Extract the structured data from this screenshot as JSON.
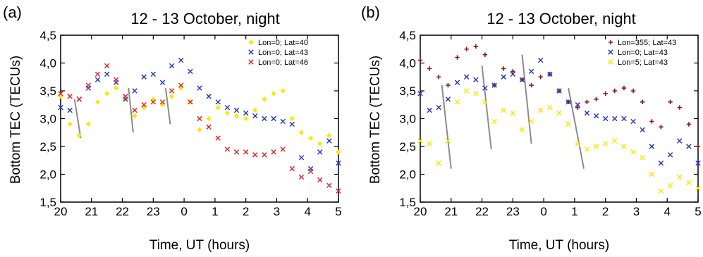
{
  "figure": {
    "panels": [
      {
        "letter": "(a)",
        "title": "12 - 13 October, night"
      },
      {
        "letter": "(b)",
        "title": "12 - 13 October, night"
      }
    ]
  },
  "chart_data": [
    {
      "type": "scatter",
      "panel": "(a)",
      "title": "12 - 13 October, night",
      "xlabel": "Time, UT (hours)",
      "ylabel": "Bottom TEC (TECUs)",
      "x_tick_labels": [
        "20",
        "21",
        "22",
        "23",
        "0",
        "1",
        "2",
        "3",
        "4",
        "5"
      ],
      "y_tick_labels": [
        "1,5",
        "2,0",
        "2,5",
        "3,0",
        "3,5",
        "4,0",
        "4,5"
      ],
      "xlim": [
        20,
        29
      ],
      "ylim": [
        1.5,
        4.5
      ],
      "legend_position": "top-right",
      "series": [
        {
          "name": "Lon=0; Lat=40",
          "color": "#ffe600",
          "marker": "diamond",
          "x": [
            20.0,
            20.3,
            20.6,
            20.9,
            21.2,
            21.5,
            21.8,
            22.1,
            22.4,
            22.7,
            23.0,
            23.3,
            23.6,
            23.9,
            24.2,
            24.5,
            24.8,
            25.1,
            25.4,
            25.7,
            26.0,
            26.3,
            26.6,
            26.9,
            27.2,
            27.5,
            27.8,
            28.1,
            28.4,
            28.7,
            29.0
          ],
          "y": [
            3.4,
            2.9,
            2.7,
            2.9,
            3.3,
            3.45,
            3.55,
            3.35,
            3.05,
            3.2,
            3.35,
            3.25,
            3.4,
            3.55,
            3.3,
            2.8,
            3.0,
            3.2,
            3.1,
            3.05,
            3.0,
            3.15,
            3.35,
            3.45,
            3.5,
            3.0,
            2.75,
            2.65,
            2.55,
            2.7,
            2.4
          ]
        },
        {
          "name": "Lon=0; Lat=43",
          "color": "#2b3bc2",
          "marker": "x",
          "x": [
            20.0,
            20.3,
            20.6,
            20.9,
            21.2,
            21.5,
            21.8,
            22.1,
            22.4,
            22.7,
            23.0,
            23.3,
            23.6,
            23.9,
            24.2,
            24.5,
            24.8,
            25.1,
            25.4,
            25.7,
            26.0,
            26.3,
            26.6,
            26.9,
            27.2,
            27.5,
            27.8,
            28.1,
            28.4,
            28.7,
            29.0
          ],
          "y": [
            3.2,
            3.15,
            3.35,
            3.55,
            3.7,
            3.8,
            3.65,
            3.35,
            3.5,
            3.75,
            3.8,
            3.65,
            3.95,
            4.05,
            3.85,
            3.55,
            3.4,
            3.3,
            3.2,
            3.15,
            3.1,
            3.05,
            3.0,
            3.0,
            2.95,
            2.9,
            2.3,
            2.1,
            2.4,
            2.6,
            2.2
          ]
        },
        {
          "name": "Lon=0; Lat=46",
          "color": "#dd2a2a",
          "marker": "x",
          "x": [
            20.0,
            20.3,
            20.6,
            20.9,
            21.2,
            21.5,
            21.8,
            22.1,
            22.4,
            22.7,
            23.0,
            23.3,
            23.6,
            23.9,
            24.2,
            24.5,
            24.8,
            25.1,
            25.4,
            25.7,
            26.0,
            26.3,
            26.6,
            26.9,
            27.2,
            27.5,
            27.8,
            28.1,
            28.4,
            28.7,
            29.0
          ],
          "y": [
            3.45,
            3.4,
            3.35,
            3.6,
            3.8,
            3.95,
            3.7,
            3.4,
            3.15,
            3.25,
            3.3,
            3.3,
            3.5,
            3.6,
            3.3,
            3.0,
            2.85,
            2.65,
            2.45,
            2.4,
            2.4,
            2.35,
            2.35,
            2.4,
            2.45,
            2.1,
            1.95,
            2.05,
            1.9,
            1.8,
            1.7
          ]
        }
      ]
    },
    {
      "type": "scatter",
      "panel": "(b)",
      "title": "12 - 13 October, night",
      "xlabel": "Time, UT (hours)",
      "ylabel": "Bottom TEC (TECUs)",
      "x_tick_labels": [
        "20",
        "21",
        "22",
        "23",
        "0",
        "1",
        "2",
        "3",
        "4",
        "5"
      ],
      "y_tick_labels": [
        "1,5",
        "2,0",
        "2,5",
        "3,0",
        "3,5",
        "4,0",
        "4,5"
      ],
      "xlim": [
        20,
        29
      ],
      "ylim": [
        1.5,
        4.5
      ],
      "legend_position": "top-right",
      "series": [
        {
          "name": "Lon=355; Lat=43",
          "color": "#8b1a1a",
          "marker": "plus",
          "x": [
            20.0,
            20.3,
            20.6,
            20.9,
            21.2,
            21.5,
            21.8,
            22.1,
            22.4,
            22.7,
            23.0,
            23.3,
            23.6,
            23.9,
            24.2,
            24.5,
            24.8,
            25.1,
            25.4,
            25.7,
            26.0,
            26.3,
            26.6,
            26.9,
            27.2,
            27.5,
            27.8,
            28.1,
            28.4,
            28.7,
            29.0
          ],
          "y": [
            4.05,
            3.9,
            3.75,
            3.6,
            4.1,
            4.25,
            4.3,
            4.15,
            3.6,
            3.9,
            3.85,
            3.7,
            3.6,
            3.75,
            3.8,
            3.5,
            3.3,
            3.2,
            3.3,
            3.35,
            3.45,
            3.5,
            3.55,
            3.5,
            3.3,
            2.95,
            2.85,
            3.3,
            3.2,
            2.9,
            2.5
          ]
        },
        {
          "name": "Lon=0; Lat=43",
          "color": "#2b3bc2",
          "marker": "x",
          "x": [
            20.0,
            20.3,
            20.6,
            20.9,
            21.2,
            21.5,
            21.8,
            22.1,
            22.4,
            22.7,
            23.0,
            23.3,
            23.6,
            23.9,
            24.2,
            24.5,
            24.8,
            25.1,
            25.4,
            25.7,
            26.0,
            26.3,
            26.6,
            26.9,
            27.2,
            27.5,
            27.8,
            28.1,
            28.4,
            28.7,
            29.0
          ],
          "y": [
            3.45,
            3.15,
            3.2,
            3.35,
            3.65,
            3.75,
            3.7,
            3.55,
            3.6,
            3.75,
            3.8,
            3.7,
            3.85,
            4.05,
            3.8,
            3.5,
            3.3,
            3.25,
            3.1,
            3.05,
            3.0,
            3.0,
            3.0,
            2.95,
            2.8,
            2.5,
            2.2,
            2.35,
            2.6,
            2.5,
            2.2
          ]
        },
        {
          "name": "Lon=5; Lat=43",
          "color": "#ffe600",
          "marker": "x",
          "x": [
            20.0,
            20.3,
            20.6,
            20.9,
            21.2,
            21.5,
            21.8,
            22.1,
            22.4,
            22.7,
            23.0,
            23.3,
            23.6,
            23.9,
            24.2,
            24.5,
            24.8,
            25.1,
            25.4,
            25.7,
            26.0,
            26.3,
            26.6,
            26.9,
            27.2,
            27.5,
            27.8,
            28.1,
            28.4,
            28.7,
            29.0
          ],
          "y": [
            2.6,
            2.55,
            2.2,
            2.6,
            3.3,
            3.5,
            3.45,
            3.3,
            2.95,
            3.15,
            3.1,
            2.8,
            2.95,
            3.15,
            3.2,
            3.1,
            2.9,
            2.55,
            2.45,
            2.5,
            2.55,
            2.6,
            2.5,
            2.4,
            2.3,
            2.0,
            1.7,
            1.8,
            1.95,
            1.85,
            1.75
          ]
        }
      ]
    }
  ]
}
